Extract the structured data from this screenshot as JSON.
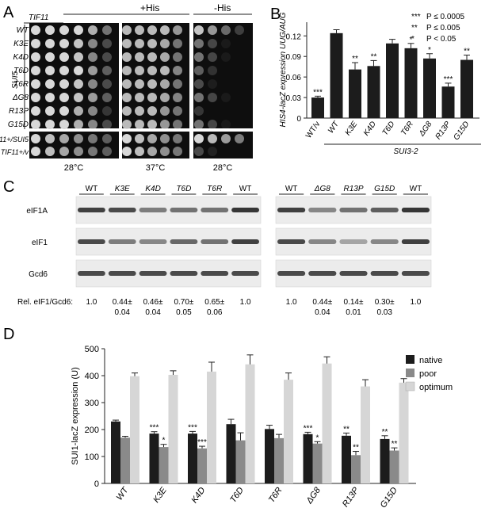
{
  "panel_a": {
    "letter": "A",
    "gene_label": "TIF11",
    "condition_plus": "+His",
    "condition_minus": "-His",
    "group_label": "SUI5",
    "rows": [
      "WT",
      "K3E",
      "K4D",
      "T6D",
      "T6R",
      "ΔG8",
      "R13P",
      "G15D"
    ],
    "controls": [
      "TIF11+/SUI5",
      "TIF11+/v"
    ],
    "temps": [
      "28°C",
      "37°C",
      "28°C"
    ]
  },
  "panel_b": {
    "letter": "B",
    "legend": [
      {
        "stars": "***",
        "text": "P ≤ 0.0005"
      },
      {
        "stars": "**",
        "text": "P ≤ 0.005"
      },
      {
        "stars": "*",
        "text": "P < 0.05"
      }
    ],
    "group_label": "SUI3-2"
  },
  "panel_c": {
    "letter": "C",
    "lanes_left": [
      "WT",
      "K3E",
      "K4D",
      "T6D",
      "T6R",
      "WT"
    ],
    "lanes_right": [
      "WT",
      "ΔG8",
      "R13P",
      "G15D",
      "WT"
    ],
    "blots": [
      "eIF1A",
      "eIF1",
      "Gcd6"
    ],
    "ratio_label": "Rel. eIF1/Gcd6:",
    "ratios_left": [
      {
        "a": "1.0",
        "b": ""
      },
      {
        "a": "0.44±",
        "b": "0.04"
      },
      {
        "a": "0.46±",
        "b": "0.04"
      },
      {
        "a": "0.70±",
        "b": "0.05"
      },
      {
        "a": "0.65±",
        "b": "0.06"
      },
      {
        "a": "1.0",
        "b": ""
      }
    ],
    "ratios_right": [
      {
        "a": "1.0",
        "b": ""
      },
      {
        "a": "0.44±",
        "b": "0.04"
      },
      {
        "a": "0.14±",
        "b": "0.01"
      },
      {
        "a": "0.30±",
        "b": "0.03"
      },
      {
        "a": "1.0",
        "b": ""
      }
    ]
  },
  "panel_d": {
    "letter": "D"
  },
  "colors": {
    "bar_dark": "#1c1c1c",
    "native": "#1c1c1c",
    "poor": "#8a8a8a",
    "optimum": "#d6d6d6"
  },
  "chart_data": [
    {
      "type": "bar",
      "ylabel": "HIS4-lacZ expression UUG/AUG",
      "categories": [
        "WT/v",
        "WT",
        "K3E",
        "K4D",
        "T6D",
        "T6R",
        "ΔG8",
        "R13P",
        "G15D"
      ],
      "yticks": [
        "0",
        "0.03",
        "0.06",
        "0.09",
        "0.12"
      ],
      "ylim": [
        0,
        0.14
      ],
      "values": [
        0.03,
        0.124,
        0.071,
        0.076,
        0.109,
        0.102,
        0.087,
        0.046,
        0.085
      ],
      "errors": [
        0.002,
        0.005,
        0.01,
        0.008,
        0.006,
        0.007,
        0.007,
        0.005,
        0.007
      ],
      "sig": [
        "***",
        "",
        "**",
        "**",
        "",
        "*",
        "*",
        "***",
        "**"
      ],
      "grid": false
    },
    {
      "type": "bar",
      "ylabel": "SUI1-lacZ expression (U)",
      "categories": [
        "WT",
        "K3E",
        "K4D",
        "T6D",
        "T6R",
        "ΔG8",
        "R13P",
        "G15D"
      ],
      "yticks": [
        "0",
        "100",
        "200",
        "300",
        "400",
        "500"
      ],
      "ylim": [
        0,
        500
      ],
      "legend_position": "top-right",
      "series": [
        {
          "name": "native",
          "values": [
            230,
            185,
            185,
            220,
            202,
            183,
            177,
            165
          ],
          "errors": [
            5,
            7,
            8,
            18,
            14,
            7,
            10,
            12
          ],
          "sig": [
            "",
            "***",
            "***",
            "",
            "",
            "***",
            "**",
            "**"
          ]
        },
        {
          "name": "poor",
          "values": [
            170,
            135,
            130,
            160,
            168,
            148,
            105,
            122
          ],
          "errors": [
            5,
            10,
            8,
            28,
            14,
            7,
            14,
            10
          ],
          "sig": [
            "",
            "*",
            "***",
            "",
            "",
            "*",
            "**",
            "**"
          ]
        },
        {
          "name": "optimum",
          "values": [
            398,
            403,
            415,
            442,
            385,
            445,
            360,
            374
          ],
          "errors": [
            12,
            15,
            35,
            35,
            25,
            25,
            25,
            15
          ],
          "sig": [
            "",
            "",
            "",
            "",
            "",
            "",
            "",
            ""
          ]
        }
      ],
      "grid": false
    }
  ]
}
